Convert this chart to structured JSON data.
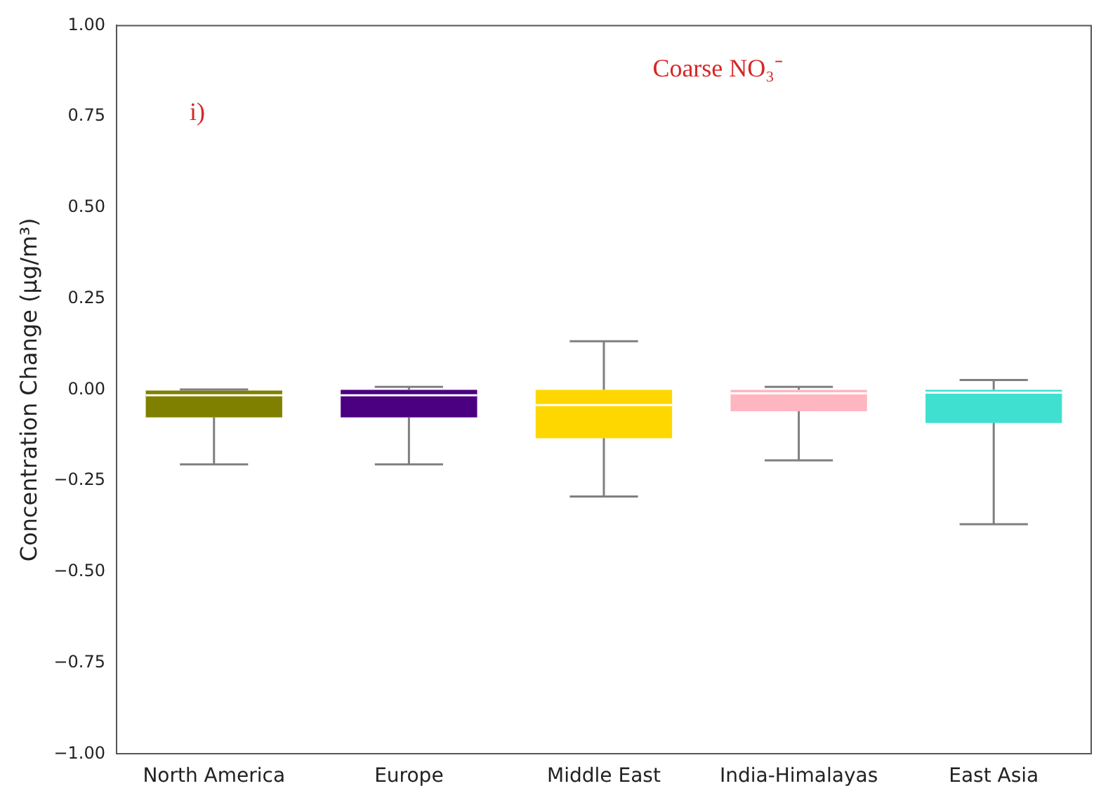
{
  "chart_data": {
    "type": "box",
    "ylabel": "Concentration Change (μg/m³)",
    "annotations": [
      "Coarse NO₃⁻",
      "i)"
    ],
    "categories": [
      "North America",
      "Europe",
      "Middle East",
      "India-Himalayas",
      "East Asia"
    ],
    "colors": [
      "#808000",
      "#4b0082",
      "#ffd700",
      "#ffb6c1",
      "#40e0d0"
    ],
    "boxes": [
      {
        "low": -0.205,
        "q1": -0.076,
        "median": -0.015,
        "q3": -0.002,
        "high": 0.001
      },
      {
        "low": -0.205,
        "q1": -0.076,
        "median": -0.015,
        "q3": 0,
        "high": 0.008
      },
      {
        "low": -0.293,
        "q1": -0.133,
        "median": -0.042,
        "q3": 0,
        "high": 0.133
      },
      {
        "low": -0.194,
        "q1": -0.059,
        "median": -0.01,
        "q3": 0,
        "high": 0.008
      },
      {
        "low": -0.369,
        "q1": -0.091,
        "median": -0.008,
        "q3": 0,
        "high": 0.027
      }
    ],
    "ylim": [
      -1,
      1
    ],
    "yticks": [
      {
        "value": -1,
        "label": "−1.00"
      },
      {
        "value": -0.75,
        "label": "−0.75"
      },
      {
        "value": -0.5,
        "label": "−0.50"
      },
      {
        "value": -0.25,
        "label": "−0.25"
      },
      {
        "value": 0,
        "label": "0.00"
      },
      {
        "value": 0.25,
        "label": "0.25"
      },
      {
        "value": 0.5,
        "label": "0.50"
      },
      {
        "value": 0.75,
        "label": "0.75"
      },
      {
        "value": 1,
        "label": "1.00"
      }
    ],
    "grid": false,
    "legend": false
  }
}
